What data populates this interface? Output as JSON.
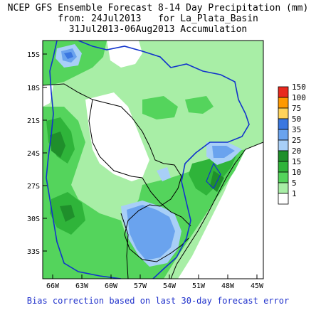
{
  "title": {
    "line1": "NCEP GFS Ensemble Forecast 8-14 Day Precipitation (mm)",
    "line2": "from: 24Jul2013   for La_Plata_Basin",
    "line3": "31Jul2013-06Aug2013 Accumulation"
  },
  "footer": "Bias correction based on last 30-day forecast error",
  "axes": {
    "lat_ticks": [
      "15S",
      "18S",
      "21S",
      "24S",
      "27S",
      "30S",
      "33S"
    ],
    "lon_ticks": [
      "66W",
      "63W",
      "60W",
      "57W",
      "54W",
      "51W",
      "48W",
      "45W"
    ]
  },
  "legend": {
    "items": [
      {
        "label": "150",
        "color": "#e8291e"
      },
      {
        "label": "100",
        "color": "#ff9900"
      },
      {
        "label": "75",
        "color": "#ffd35a"
      },
      {
        "label": "50",
        "color": "#3a77e0"
      },
      {
        "label": "35",
        "color": "#6aa3ee"
      },
      {
        "label": "25",
        "color": "#a8cff7"
      },
      {
        "label": "20",
        "color": "#1f8f2b"
      },
      {
        "label": "15",
        "color": "#2fb43a"
      },
      {
        "label": "10",
        "color": "#54d45c"
      },
      {
        "label": "5",
        "color": "#a8eea6"
      },
      {
        "label": "1",
        "color": "#ffffff"
      }
    ]
  }
}
